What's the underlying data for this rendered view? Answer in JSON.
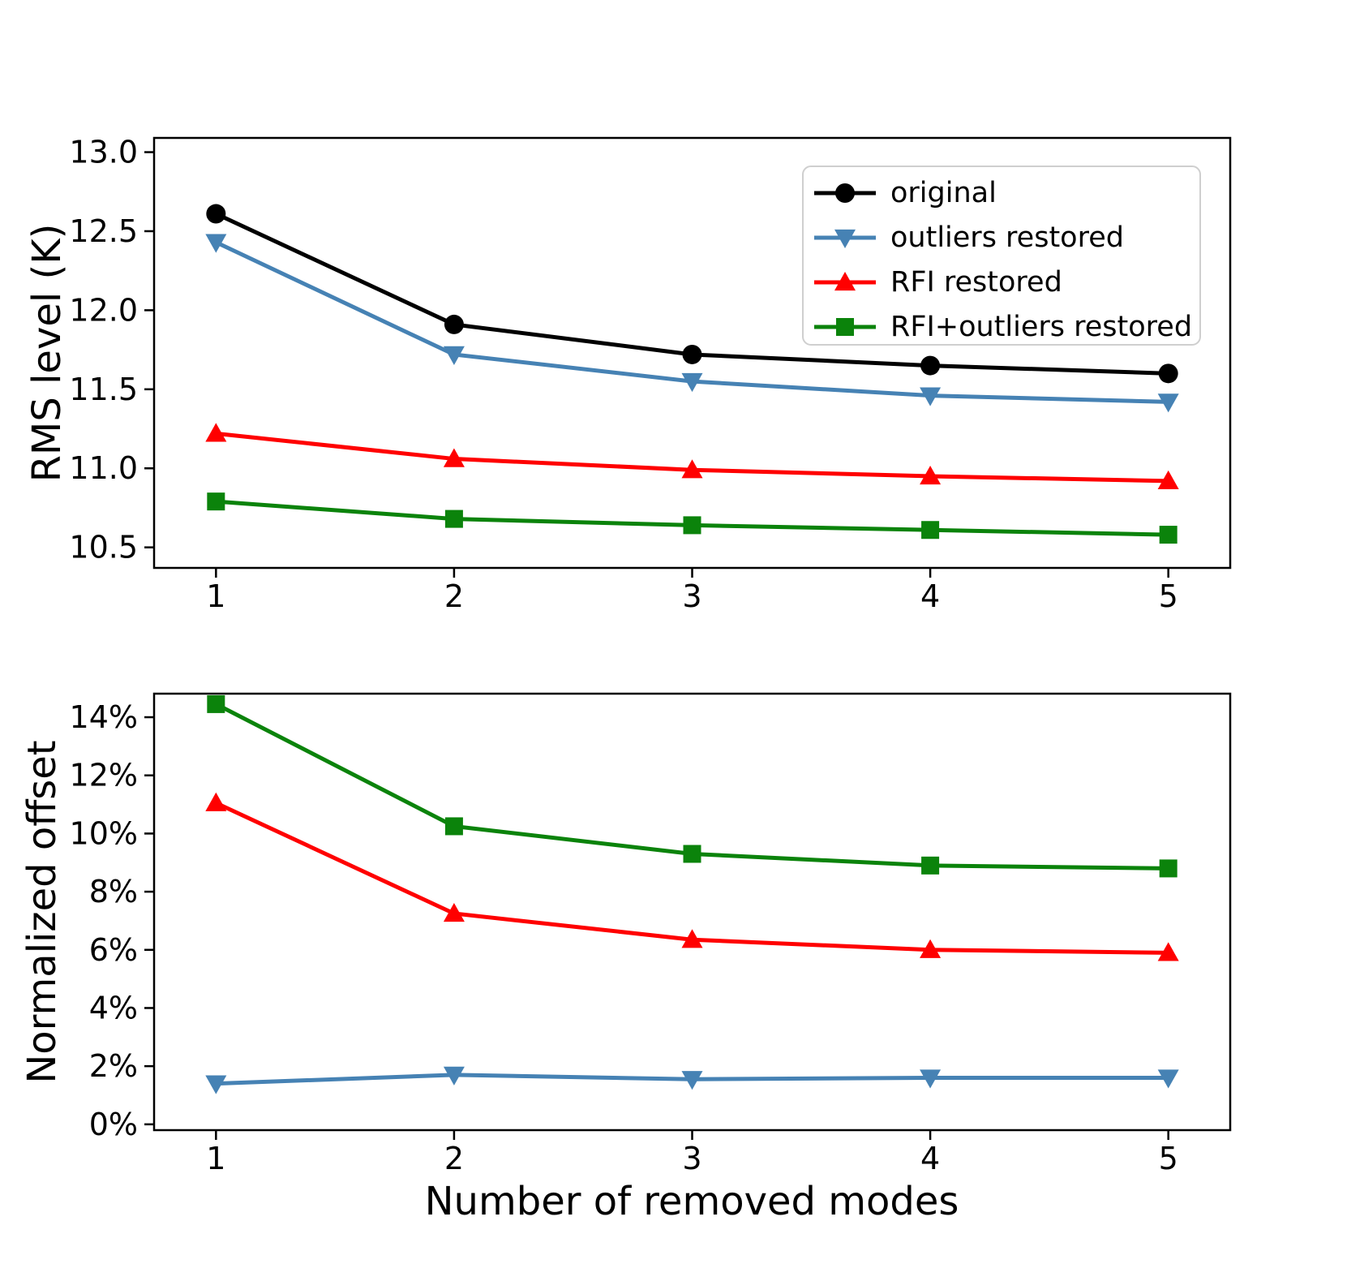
{
  "figure": {
    "background": "#ffffff",
    "title": ""
  },
  "chart_data": [
    {
      "id": "rms",
      "type": "line",
      "title": "",
      "xlabel": "",
      "ylabel": "RMS level (K)",
      "x": [
        1,
        2,
        3,
        4,
        5
      ],
      "xlim": [
        0.74,
        5.26
      ],
      "ylim": [
        10.37,
        13.09
      ],
      "grid": false,
      "xticks": [
        {
          "value": 1,
          "label": "1"
        },
        {
          "value": 2,
          "label": "2"
        },
        {
          "value": 3,
          "label": "3"
        },
        {
          "value": 4,
          "label": "4"
        },
        {
          "value": 5,
          "label": "5"
        }
      ],
      "yticks": [
        {
          "value": 13.0,
          "label": "13.0"
        },
        {
          "value": 12.5,
          "label": "12.5"
        },
        {
          "value": 12.0,
          "label": "12.0"
        },
        {
          "value": 11.5,
          "label": "11.5"
        },
        {
          "value": 11.0,
          "label": "11.0"
        },
        {
          "value": 10.5,
          "label": "10.5"
        }
      ],
      "legend": {
        "visible": true,
        "location": "upper right"
      },
      "series": [
        {
          "name": "original",
          "color": "#000000",
          "marker": "circle",
          "values": [
            12.61,
            11.91,
            11.72,
            11.65,
            11.6
          ]
        },
        {
          "name": "outliers restored",
          "color": "#4682B4",
          "marker": "triangle-down",
          "values": [
            12.43,
            11.72,
            11.55,
            11.46,
            11.42
          ]
        },
        {
          "name": "RFI restored",
          "color": "#FF0000",
          "marker": "triangle-up",
          "values": [
            11.22,
            11.06,
            10.99,
            10.95,
            10.92
          ]
        },
        {
          "name": "RFI+outliers restored",
          "color": "#0B830B",
          "marker": "square",
          "values": [
            10.79,
            10.68,
            10.64,
            10.61,
            10.58
          ]
        }
      ]
    },
    {
      "id": "offset",
      "type": "line",
      "title": "",
      "xlabel": "Number of removed modes",
      "ylabel": "Normalized offset",
      "x": [
        1,
        2,
        3,
        4,
        5
      ],
      "xlim": [
        0.74,
        5.26
      ],
      "ylim": [
        -0.2,
        14.81
      ],
      "grid": false,
      "xticks": [
        {
          "value": 1,
          "label": "1"
        },
        {
          "value": 2,
          "label": "2"
        },
        {
          "value": 3,
          "label": "3"
        },
        {
          "value": 4,
          "label": "4"
        },
        {
          "value": 5,
          "label": "5"
        }
      ],
      "yticks": [
        {
          "value": 14,
          "label": "14%"
        },
        {
          "value": 12,
          "label": "12%"
        },
        {
          "value": 10,
          "label": "10%"
        },
        {
          "value": 8,
          "label": "8%"
        },
        {
          "value": 6,
          "label": "6%"
        },
        {
          "value": 4,
          "label": "4%"
        },
        {
          "value": 2,
          "label": "2%"
        },
        {
          "value": 0,
          "label": "0%"
        }
      ],
      "legend": {
        "visible": false,
        "location": ""
      },
      "series": [
        {
          "name": "RFI+outliers restored",
          "color": "#0B830B",
          "marker": "square",
          "values": [
            14.45,
            10.25,
            9.3,
            8.9,
            8.8
          ]
        },
        {
          "name": "RFI restored",
          "color": "#FF0000",
          "marker": "triangle-up",
          "values": [
            11.05,
            7.25,
            6.35,
            6.0,
            5.9
          ]
        },
        {
          "name": "outliers restored",
          "color": "#4682B4",
          "marker": "triangle-down",
          "values": [
            1.4,
            1.7,
            1.55,
            1.6,
            1.6
          ]
        }
      ]
    }
  ]
}
